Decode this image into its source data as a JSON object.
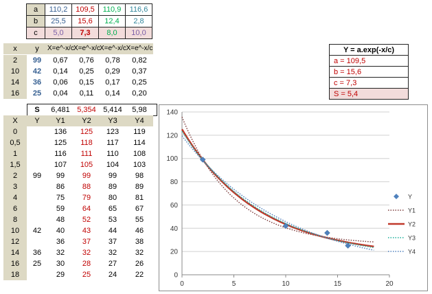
{
  "params": {
    "labels": [
      "a",
      "b",
      "c"
    ],
    "rows": [
      [
        "110,2",
        "109,5",
        "110,9",
        "116,6"
      ],
      [
        "25,5",
        "15,6",
        "12,4",
        "2,8"
      ],
      [
        "5,0",
        "7,3",
        "8,0",
        "10,0"
      ]
    ]
  },
  "xy": {
    "headers": [
      "x",
      "y",
      "X=e^-x/c",
      "X=e^-x/c",
      "X=e^-x/c",
      "X=e^-x/c"
    ],
    "rows": [
      [
        "2",
        "99",
        "0,67",
        "0,76",
        "0,78",
        "0,82"
      ],
      [
        "10",
        "42",
        "0,14",
        "0,25",
        "0,29",
        "0,37"
      ],
      [
        "14",
        "36",
        "0,06",
        "0,15",
        "0,17",
        "0,25"
      ],
      [
        "16",
        "25",
        "0,04",
        "0,11",
        "0,14",
        "0,20"
      ]
    ]
  },
  "s_row": {
    "label": "S",
    "values": [
      "6,481",
      "5,354",
      "5,414",
      "5,98"
    ]
  },
  "pred": {
    "headers": [
      "X",
      "Y",
      "Y1",
      "Y2",
      "Y3",
      "Y4"
    ],
    "rows": [
      [
        "0",
        "",
        "136",
        "125",
        "123",
        "119"
      ],
      [
        "0,5",
        "",
        "125",
        "118",
        "117",
        "114"
      ],
      [
        "1",
        "",
        "116",
        "111",
        "110",
        "108"
      ],
      [
        "1,5",
        "",
        "107",
        "105",
        "104",
        "103"
      ],
      [
        "2",
        "99",
        "99",
        "99",
        "99",
        "98"
      ],
      [
        "3",
        "",
        "86",
        "88",
        "89",
        "89"
      ],
      [
        "4",
        "",
        "75",
        "79",
        "80",
        "81"
      ],
      [
        "6",
        "",
        "59",
        "64",
        "65",
        "67"
      ],
      [
        "8",
        "",
        "48",
        "52",
        "53",
        "55"
      ],
      [
        "10",
        "42",
        "40",
        "43",
        "44",
        "46"
      ],
      [
        "12",
        "",
        "36",
        "37",
        "37",
        "38"
      ],
      [
        "14",
        "36",
        "32",
        "32",
        "32",
        "32"
      ],
      [
        "16",
        "25",
        "30",
        "28",
        "27",
        "26"
      ],
      [
        "18",
        "",
        "29",
        "25",
        "24",
        "22"
      ]
    ]
  },
  "result": {
    "title": "Y = a.exp(-x/c)",
    "lines": [
      "a = 109,5",
      "b = 15,6",
      "c = 7,3",
      "S = 5,4"
    ]
  },
  "colors": {
    "header_bg": "#ddd9c4",
    "pink_bg": "#f2dcdb",
    "blue": "#376092",
    "red": "#c00000",
    "green": "#00b050",
    "teal": "#31869b",
    "purple": "#7b5ea7",
    "y1_color": "#7f3f3f",
    "y2_color": "#c0392b",
    "y3_color": "#1aaf9a",
    "y4_color": "#4f81bd"
  },
  "chart_data": {
    "type": "line",
    "xlim": [
      0,
      20
    ],
    "ylim": [
      0,
      140
    ],
    "x_ticks": [
      "0",
      "5",
      "10",
      "15",
      "20"
    ],
    "y_ticks": [
      "0",
      "20",
      "40",
      "60",
      "80",
      "100",
      "120",
      "140"
    ],
    "grid": true,
    "legend_position": "right",
    "points": {
      "name": "Y",
      "x": [
        2,
        10,
        14,
        16
      ],
      "y": [
        99,
        42,
        36,
        25
      ]
    },
    "curves": [
      {
        "name": "Y1",
        "a": 110.2,
        "b": 25.5,
        "c": 5.0,
        "style": "dotted"
      },
      {
        "name": "Y2",
        "a": 109.5,
        "b": 15.6,
        "c": 7.3,
        "style": "solid"
      },
      {
        "name": "Y3",
        "a": 110.9,
        "b": 12.4,
        "c": 8.0,
        "style": "dotted"
      },
      {
        "name": "Y4",
        "a": 116.6,
        "b": 2.8,
        "c": 10.0,
        "style": "dotted"
      }
    ],
    "x_end": 18.5
  }
}
